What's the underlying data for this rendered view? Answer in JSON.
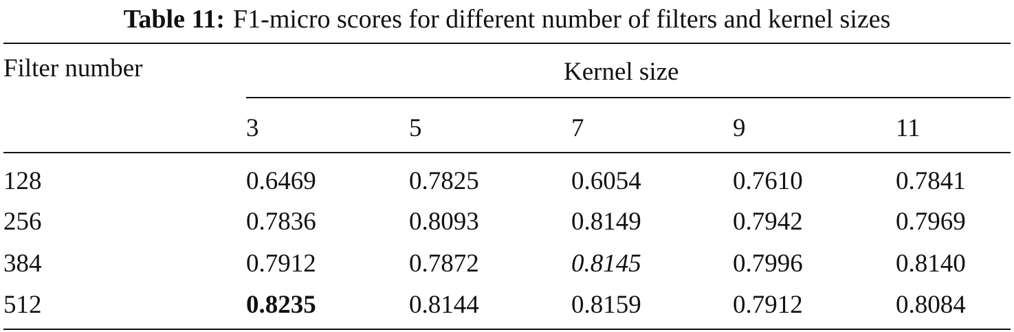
{
  "caption": {
    "label": "Table 11:",
    "text": "F1-micro scores for different number of filters and kernel sizes"
  },
  "table": {
    "row_header": "Filter number",
    "column_group": "Kernel size",
    "columns": [
      "3",
      "5",
      "7",
      "9",
      "11"
    ],
    "rows": [
      [
        "128",
        "0.6469",
        "0.7825",
        "0.6054",
        "0.7610",
        "0.7841"
      ],
      [
        "256",
        "0.7836",
        "0.8093",
        "0.8149",
        "0.7942",
        "0.7969"
      ],
      [
        "384",
        "0.7912",
        "0.7872",
        "0.8145",
        "0.7996",
        "0.8140"
      ],
      [
        "512",
        "0.8235",
        "0.8144",
        "0.8159",
        "0.7912",
        "0.8084"
      ]
    ]
  }
}
